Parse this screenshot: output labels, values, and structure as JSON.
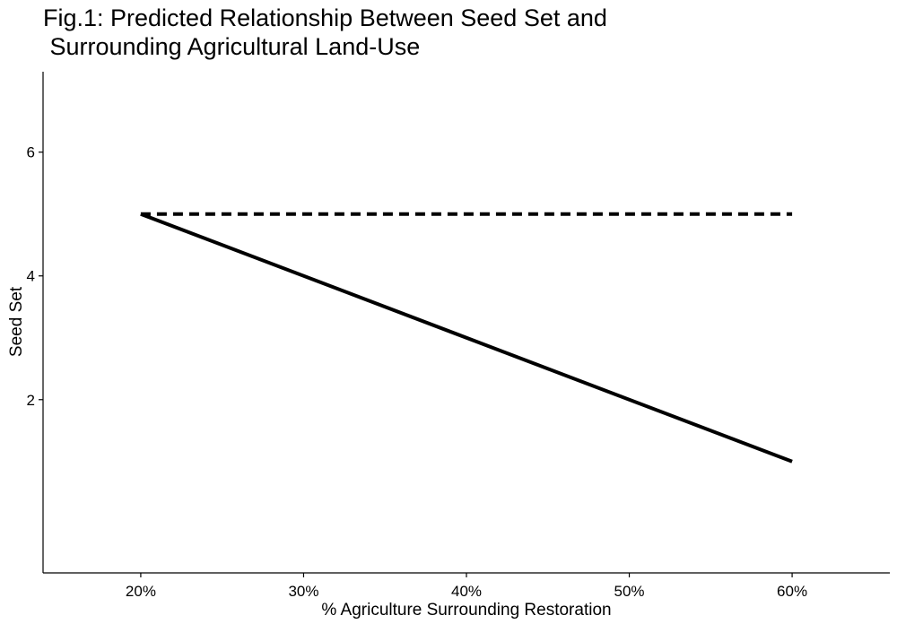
{
  "chart_data": {
    "type": "line",
    "title_lines": [
      "Fig.1: Predicted Relationship Between Seed Set and",
      " Surrounding Agricultural Land-Use"
    ],
    "xlabel": "% Agriculture Surrounding Restoration",
    "ylabel": "Seed Set",
    "x_ticks": [
      {
        "value": 20,
        "label": "20%"
      },
      {
        "value": 30,
        "label": "30%"
      },
      {
        "value": 40,
        "label": "40%"
      },
      {
        "value": 50,
        "label": "50%"
      },
      {
        "value": 60,
        "label": "60%"
      }
    ],
    "y_ticks": [
      {
        "value": 2,
        "label": "2"
      },
      {
        "value": 4,
        "label": "4"
      },
      {
        "value": 6,
        "label": "6"
      }
    ],
    "xlim": [
      14,
      66
    ],
    "ylim": [
      -0.8,
      7.3
    ],
    "grid": false,
    "legend": "none",
    "series": [
      {
        "style": "dashed",
        "color": "#000000",
        "x": [
          20,
          60
        ],
        "y": [
          5,
          5
        ]
      },
      {
        "style": "solid",
        "color": "#000000",
        "x": [
          20,
          60
        ],
        "y": [
          5,
          1
        ]
      }
    ]
  }
}
